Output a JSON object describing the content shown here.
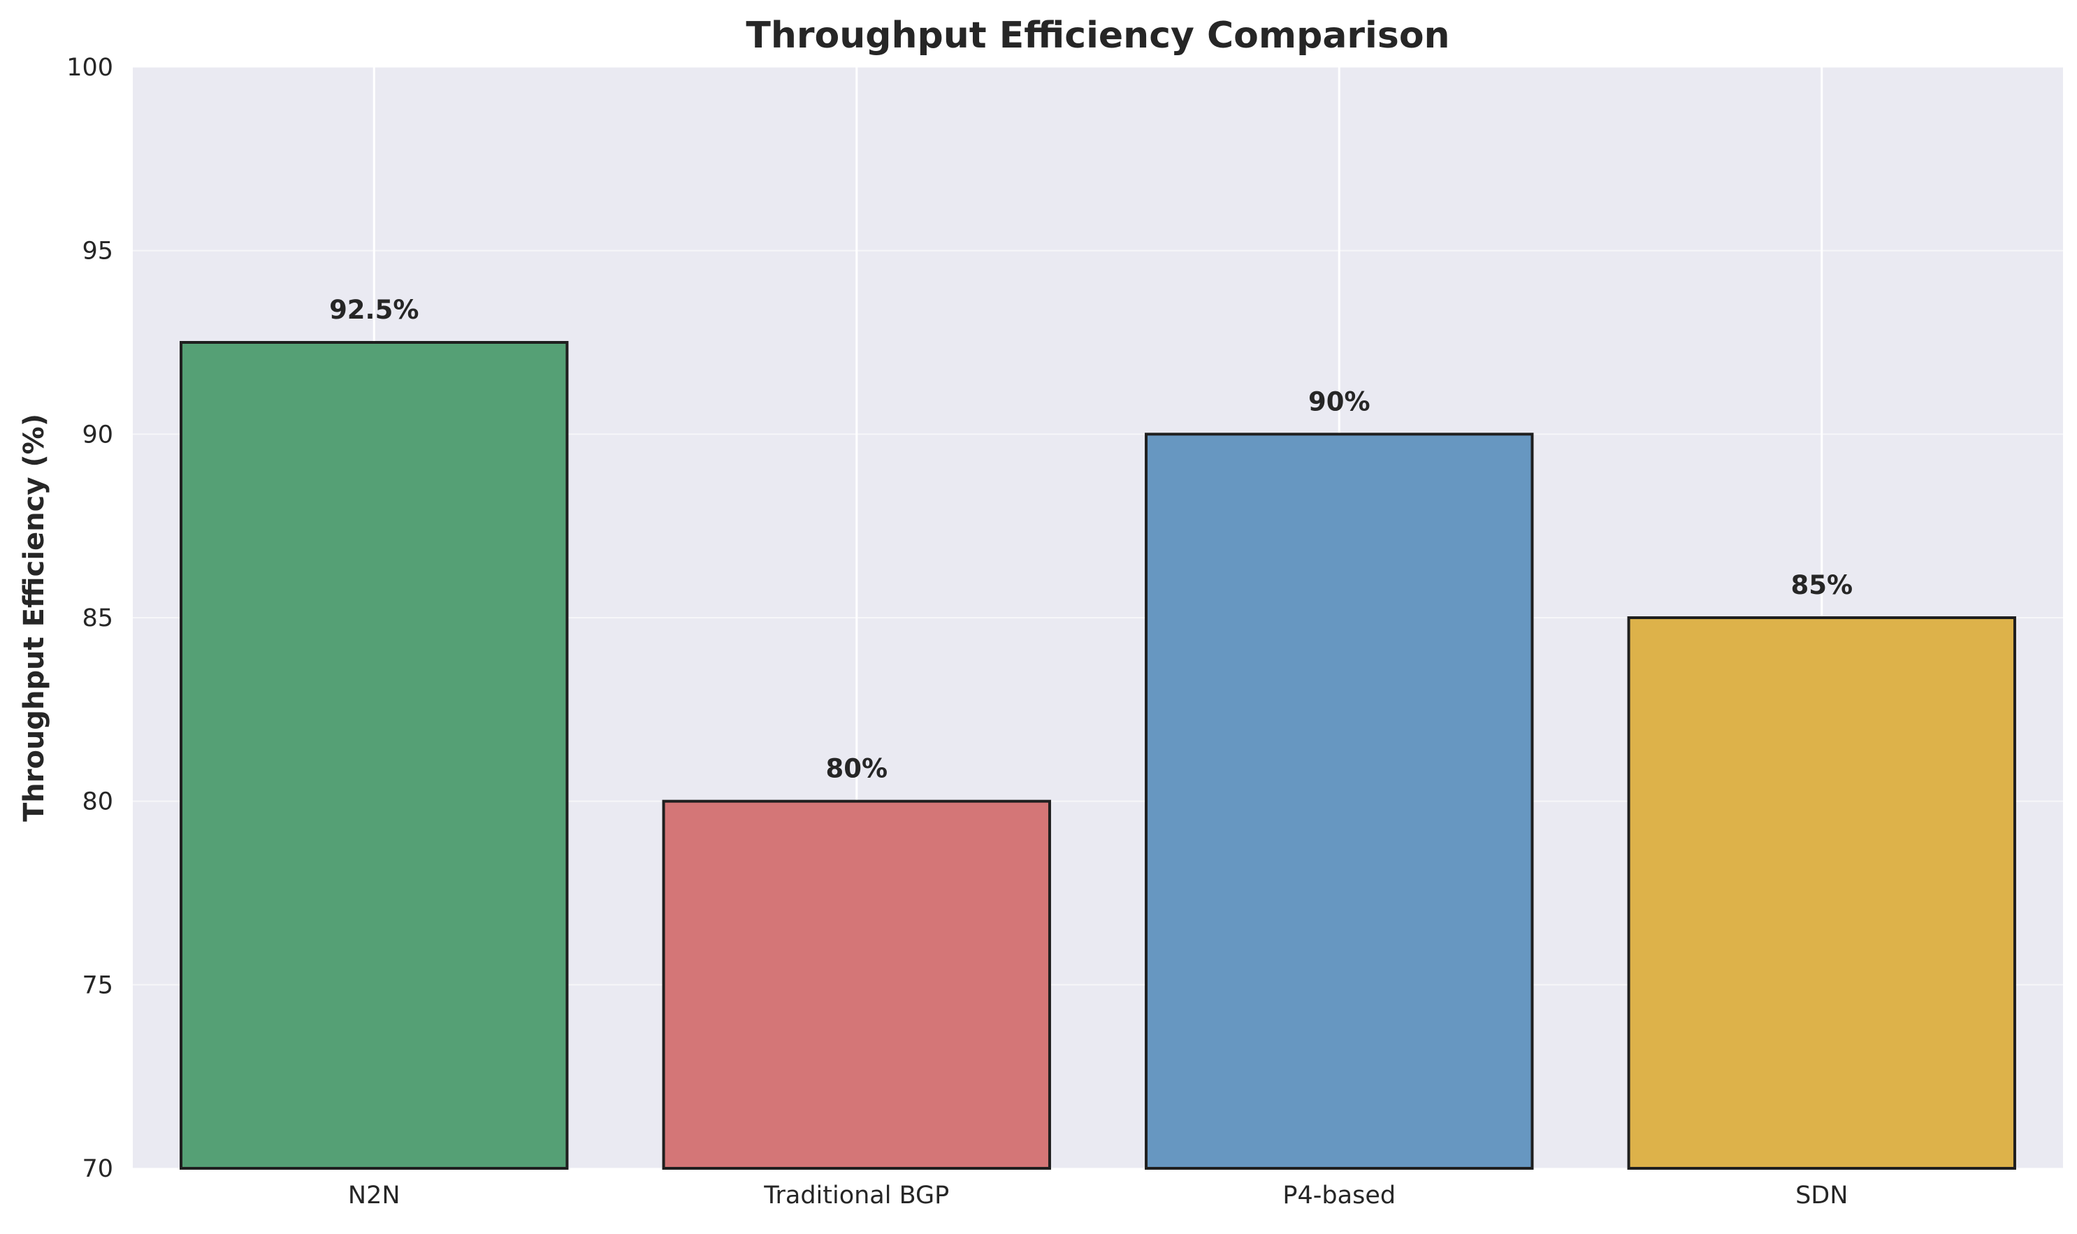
{
  "chart_data": {
    "type": "bar",
    "title": "Throughput Efficiency Comparison",
    "xlabel": "",
    "ylabel": "Throughput Efficiency (%)",
    "categories": [
      "N2N",
      "Traditional BGP",
      "P4-based",
      "SDN"
    ],
    "values": [
      92.5,
      80,
      90,
      85
    ],
    "data_labels": [
      "92.5%",
      "80%",
      "90%",
      "85%"
    ],
    "colors": [
      "#55a075",
      "#d47677",
      "#6797c1",
      "#ddb24a"
    ],
    "ylim": [
      70,
      100
    ],
    "yticks": [
      70,
      75,
      80,
      85,
      90,
      95,
      100
    ],
    "ytick_labels": [
      "70",
      "75",
      "80",
      "85",
      "90",
      "95",
      "100"
    ],
    "grid": true,
    "background": "#eaeaf2"
  }
}
